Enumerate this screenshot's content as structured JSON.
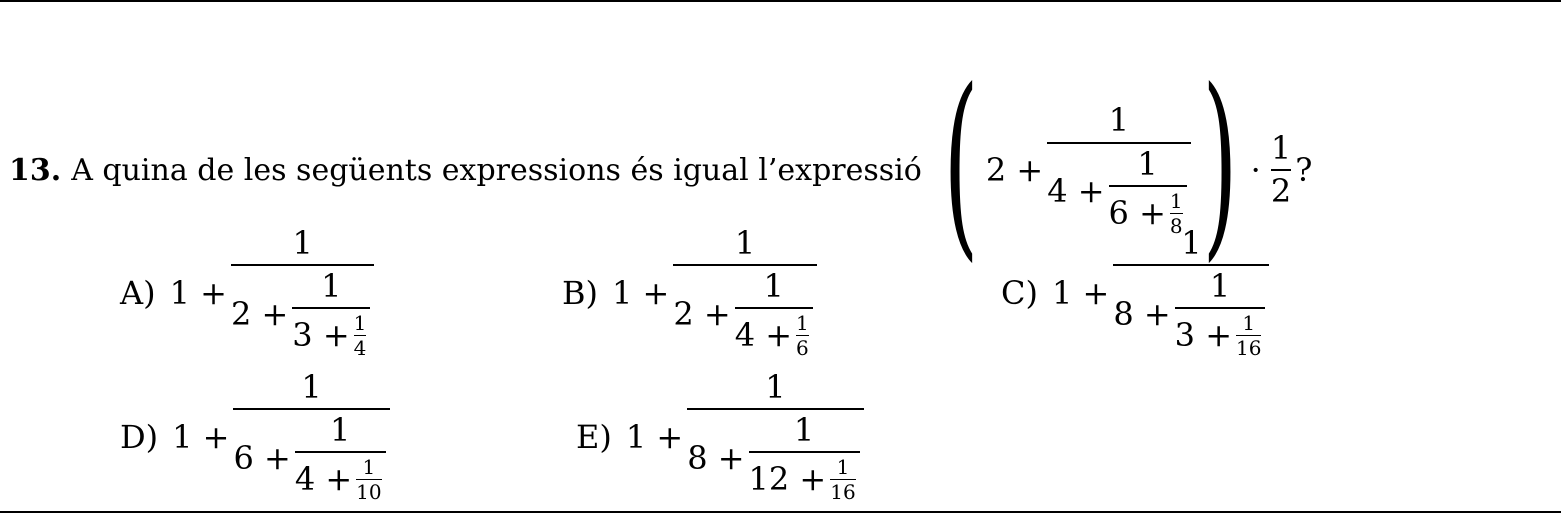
{
  "question": {
    "number": "13.",
    "text": "A quina de les següents expressions és igual l’expressió",
    "expression": {
      "leading": "2 +",
      "outer_numerator": "1",
      "mid_leading": "4 +",
      "mid_numerator": "1",
      "inner_leading": "6 +",
      "inner_numerator": "1",
      "inner_denominator": "8",
      "dot": "·",
      "half_num": "1",
      "half_den": "2",
      "qmark": "?"
    }
  },
  "options": [
    {
      "label": "A)",
      "a": "1 +",
      "n1": "1",
      "b": "2 +",
      "n2": "1",
      "c": "3 +",
      "n3": "1",
      "d": "4"
    },
    {
      "label": "B)",
      "a": "1 +",
      "n1": "1",
      "b": "2 +",
      "n2": "1",
      "c": "4 +",
      "n3": "1",
      "d": "6"
    },
    {
      "label": "C)",
      "a": "1 +",
      "n1": "1",
      "b": "8 +",
      "n2": "1",
      "c": "3 +",
      "n3": "1",
      "d": "16"
    },
    {
      "label": "D)",
      "a": "1 +",
      "n1": "1",
      "b": "6 +",
      "n2": "1",
      "c": "4 +",
      "n3": "1",
      "d": "10"
    },
    {
      "label": "E)",
      "a": "1 +",
      "n1": "1",
      "b": "8 +",
      "n2": "1",
      "c": "12 +",
      "n3": "1",
      "d": "16"
    }
  ]
}
